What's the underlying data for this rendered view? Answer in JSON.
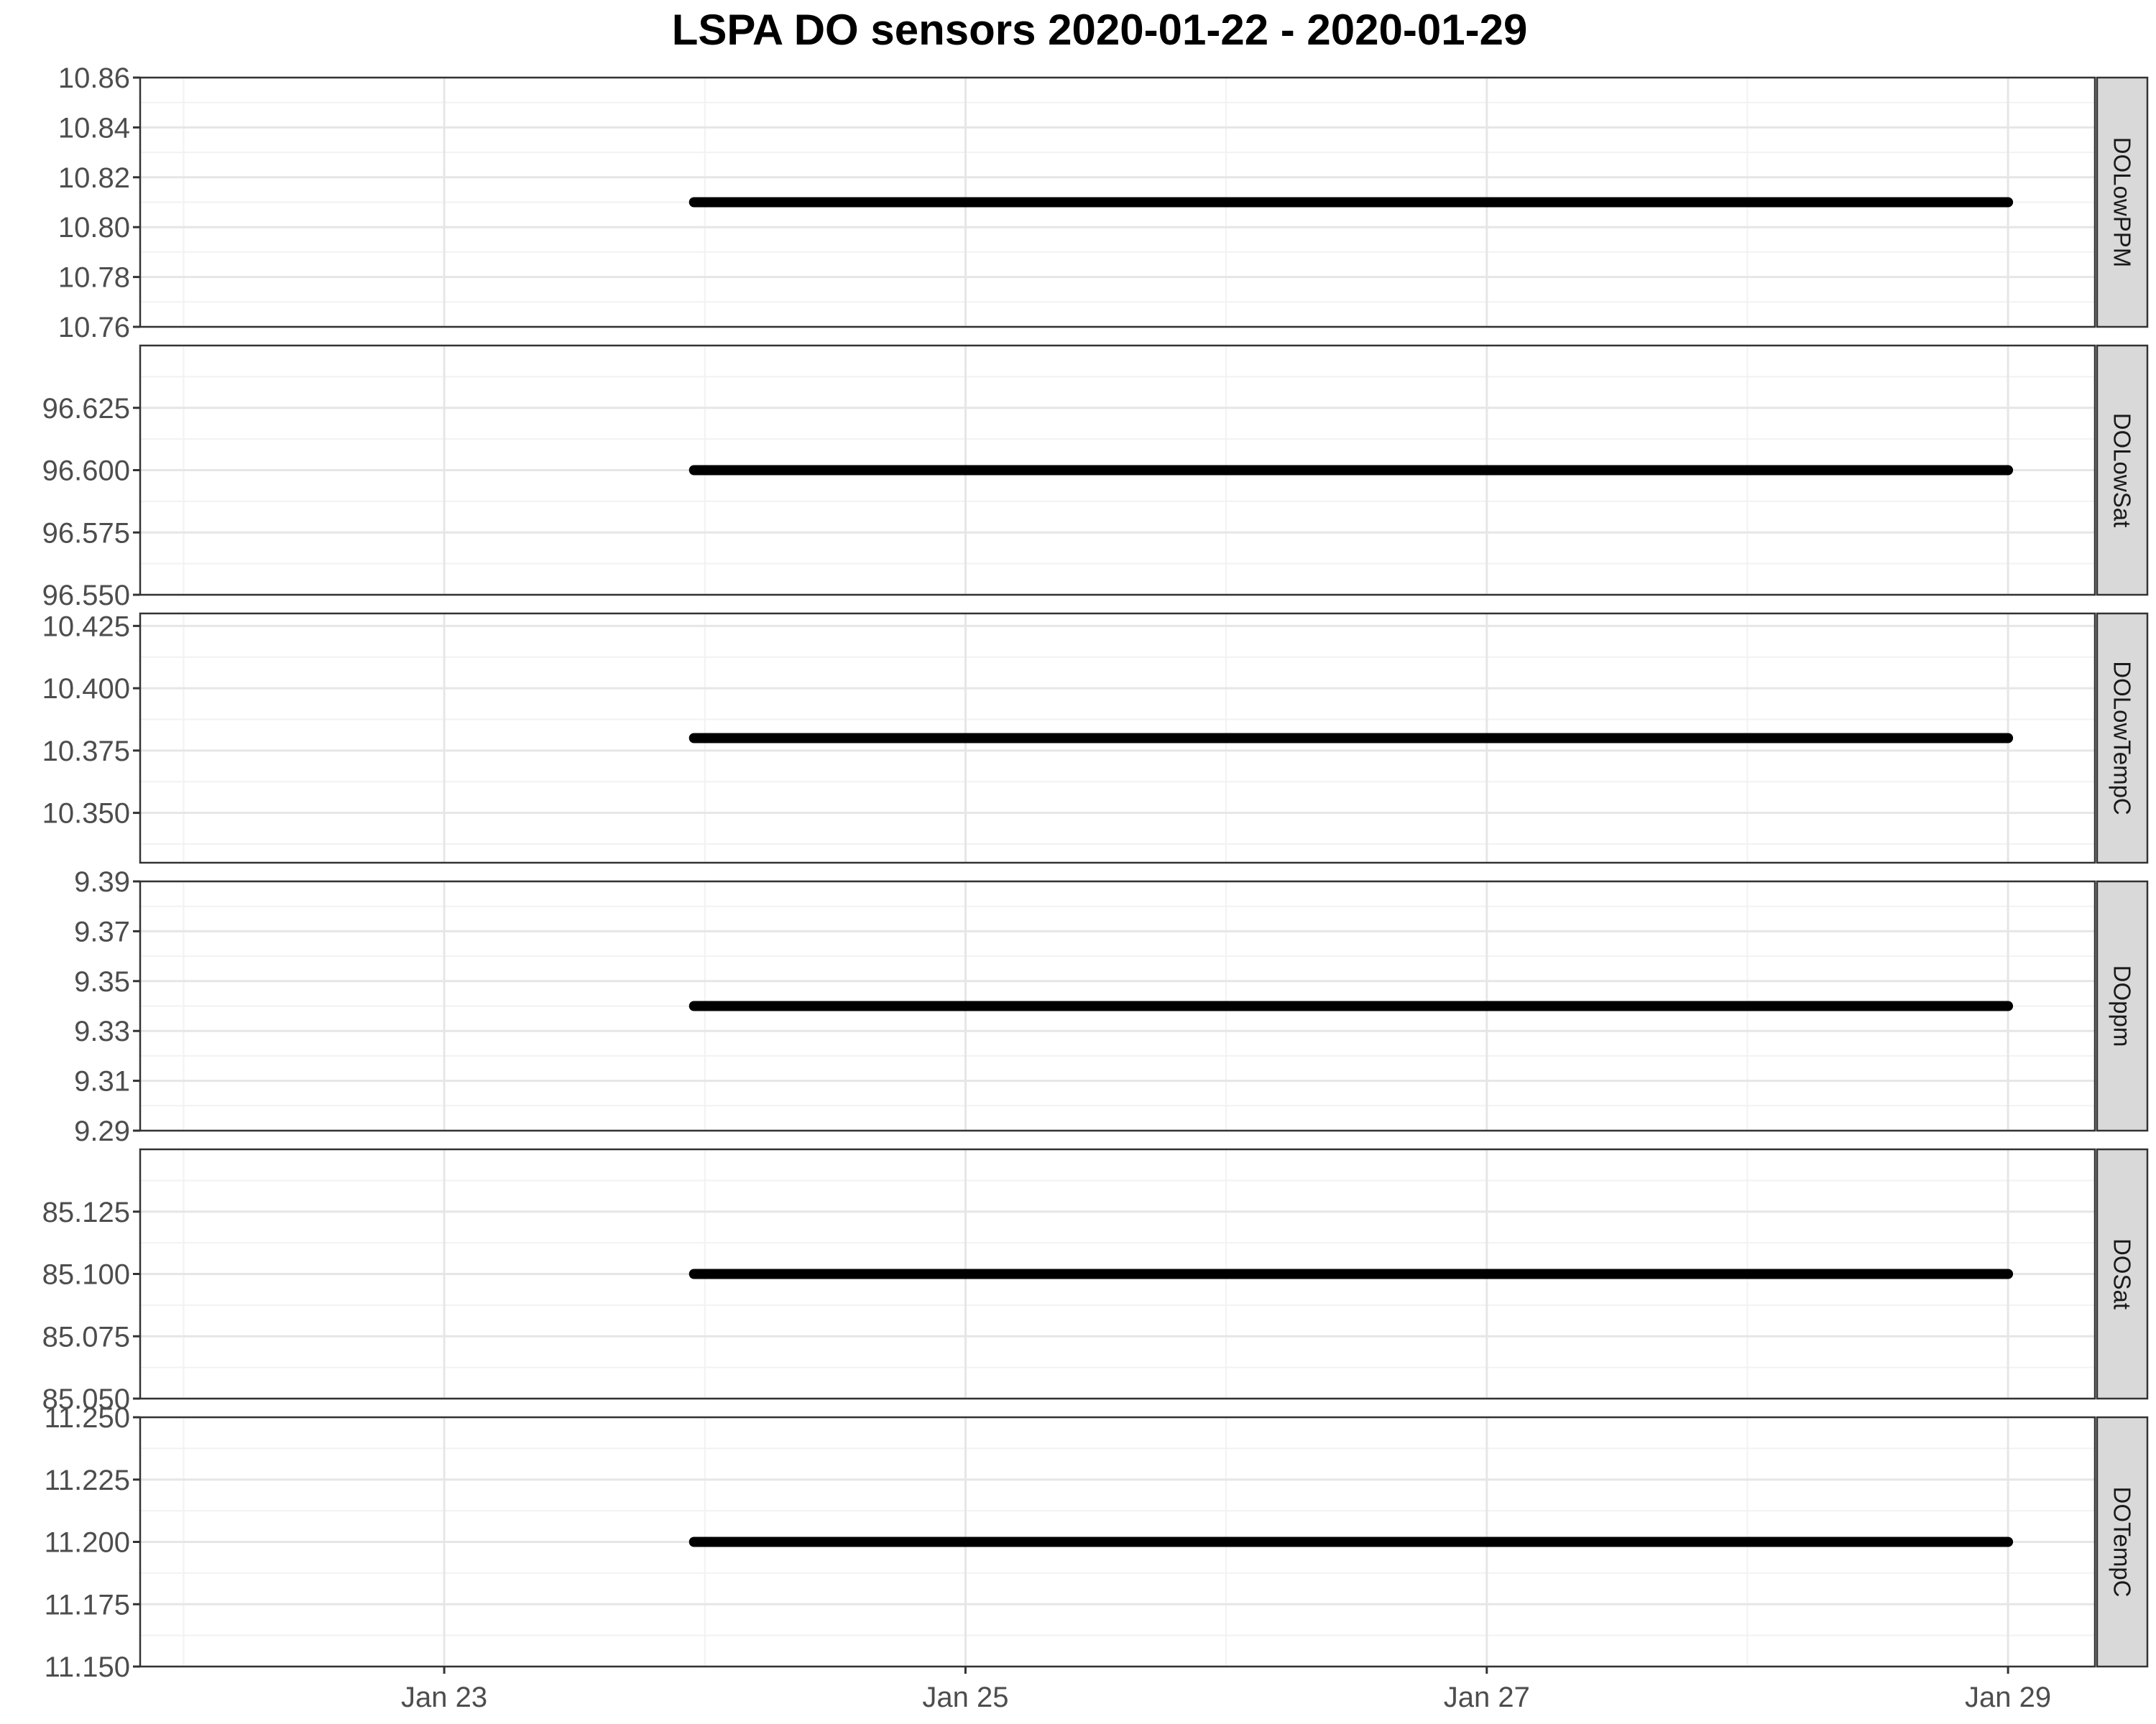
{
  "chart_data": {
    "type": "line",
    "title": "LSPA DO sensors 2020-01-22 - 2020-01-29",
    "xlabel": "",
    "ylabel": "",
    "x_range": [
      "2020-01-21T20:00",
      "2020-01-29T08:00"
    ],
    "x_ticks": [
      {
        "date": "2020-01-23",
        "label": "Jan 23"
      },
      {
        "date": "2020-01-25",
        "label": "Jan 25"
      },
      {
        "date": "2020-01-27",
        "label": "Jan 27"
      },
      {
        "date": "2020-01-29",
        "label": "Jan 29"
      }
    ],
    "grid": true,
    "line_color": "#000000",
    "panels": [
      {
        "name": "DOLowPPM",
        "ylim": [
          10.76,
          10.86
        ],
        "yticks": [
          "10.76",
          "10.78",
          "10.80",
          "10.82",
          "10.84",
          "10.86"
        ],
        "x": [
          "2020-01-23T23:00",
          "2020-01-29T00:00"
        ],
        "y": [
          10.81,
          10.81
        ]
      },
      {
        "name": "DOLowSat",
        "ylim": [
          96.55,
          96.65
        ],
        "yticks": [
          "96.550",
          "96.575",
          "96.600",
          "96.625"
        ],
        "x": [
          "2020-01-23T23:00",
          "2020-01-29T00:00"
        ],
        "y": [
          96.6,
          96.6
        ]
      },
      {
        "name": "DOLowTempC",
        "ylim": [
          10.33,
          10.43
        ],
        "yticks": [
          "10.350",
          "10.375",
          "10.400",
          "10.425"
        ],
        "x": [
          "2020-01-23T23:00",
          "2020-01-29T00:00"
        ],
        "y": [
          10.38,
          10.38
        ]
      },
      {
        "name": "DOppm",
        "ylim": [
          9.29,
          9.39
        ],
        "yticks": [
          "9.29",
          "9.31",
          "9.33",
          "9.35",
          "9.37",
          "9.39"
        ],
        "x": [
          "2020-01-23T23:00",
          "2020-01-29T00:00"
        ],
        "y": [
          9.34,
          9.34
        ]
      },
      {
        "name": "DOSat",
        "ylim": [
          85.05,
          85.15
        ],
        "yticks": [
          "85.050",
          "85.075",
          "85.100",
          "85.125"
        ],
        "x": [
          "2020-01-23T23:00",
          "2020-01-29T00:00"
        ],
        "y": [
          85.1,
          85.1
        ]
      },
      {
        "name": "DOTempC",
        "ylim": [
          11.15,
          11.25
        ],
        "yticks": [
          "11.150",
          "11.175",
          "11.200",
          "11.225",
          "11.250"
        ],
        "x": [
          "2020-01-23T23:00",
          "2020-01-29T00:00"
        ],
        "y": [
          11.2,
          11.2
        ]
      }
    ]
  }
}
